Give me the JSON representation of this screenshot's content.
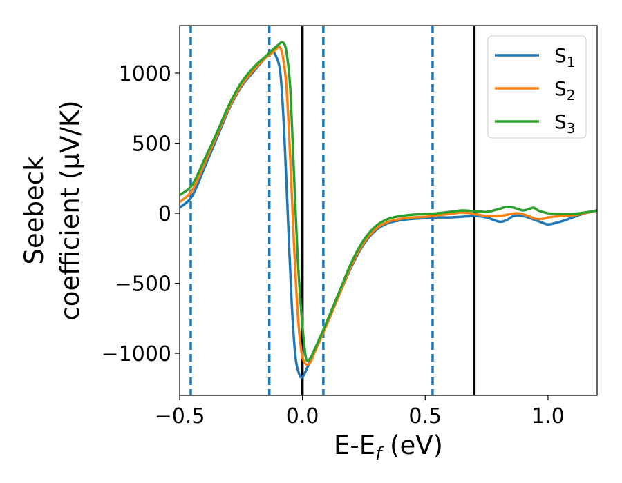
{
  "chart_data": {
    "type": "line",
    "title": "",
    "xlabel": "E-E",
    "xlabel_sub": "f",
    "xlabel_unit": " (eV)",
    "ylabel_line1": "Seebeck",
    "ylabel_line2": "coefficient  (μV/K)",
    "xlim": [
      -0.5,
      1.2
    ],
    "ylim": [
      -1300,
      1340
    ],
    "xticks": [
      -0.5,
      0.0,
      0.5,
      1.0
    ],
    "xtick_labels": [
      "−0.5",
      "0.0",
      "0.5",
      "1.0"
    ],
    "yticks": [
      -1000,
      -500,
      0,
      500,
      1000
    ],
    "ytick_labels": [
      "−1000",
      "−500",
      "0",
      "500",
      "1000"
    ],
    "grid": false,
    "legend_position": "top-right",
    "vertical_lines": [
      {
        "x": -0.455,
        "style": "dashed",
        "color": "#1f77b4"
      },
      {
        "x": -0.135,
        "style": "dashed",
        "color": "#1f77b4"
      },
      {
        "x": 0.0,
        "style": "solid",
        "color": "#000000"
      },
      {
        "x": 0.085,
        "style": "dashed",
        "color": "#1f77b4"
      },
      {
        "x": 0.53,
        "style": "dashed",
        "color": "#1f77b4"
      },
      {
        "x": 0.7,
        "style": "solid",
        "color": "#000000"
      }
    ],
    "series": [
      {
        "name": "S",
        "sub": "1",
        "color": "#1f77b4",
        "points": [
          [
            -0.5,
            40
          ],
          [
            -0.45,
            120
          ],
          [
            -0.4,
            320
          ],
          [
            -0.35,
            530
          ],
          [
            -0.3,
            740
          ],
          [
            -0.25,
            900
          ],
          [
            -0.2,
            1010
          ],
          [
            -0.15,
            1110
          ],
          [
            -0.125,
            1150
          ],
          [
            -0.11,
            1130
          ],
          [
            -0.09,
            1000
          ],
          [
            -0.075,
            600
          ],
          [
            -0.06,
            0
          ],
          [
            -0.045,
            -600
          ],
          [
            -0.03,
            -1000
          ],
          [
            -0.015,
            -1140
          ],
          [
            0.0,
            -1170
          ],
          [
            0.02,
            -1100
          ],
          [
            0.05,
            -980
          ],
          [
            0.1,
            -790
          ],
          [
            0.15,
            -580
          ],
          [
            0.2,
            -380
          ],
          [
            0.25,
            -220
          ],
          [
            0.3,
            -120
          ],
          [
            0.35,
            -70
          ],
          [
            0.4,
            -50
          ],
          [
            0.45,
            -40
          ],
          [
            0.5,
            -35
          ],
          [
            0.55,
            -30
          ],
          [
            0.6,
            -30
          ],
          [
            0.65,
            -25
          ],
          [
            0.7,
            -20
          ],
          [
            0.75,
            -30
          ],
          [
            0.8,
            -60
          ],
          [
            0.83,
            -50
          ],
          [
            0.86,
            -20
          ],
          [
            0.9,
            -20
          ],
          [
            0.95,
            -50
          ],
          [
            0.98,
            -70
          ],
          [
            1.0,
            -80
          ],
          [
            1.03,
            -70
          ],
          [
            1.07,
            -50
          ],
          [
            1.1,
            -30
          ],
          [
            1.15,
            0
          ],
          [
            1.2,
            20
          ]
        ]
      },
      {
        "name": "S",
        "sub": "2",
        "color": "#ff7f0e",
        "points": [
          [
            -0.5,
            80
          ],
          [
            -0.45,
            160
          ],
          [
            -0.4,
            350
          ],
          [
            -0.35,
            550
          ],
          [
            -0.3,
            750
          ],
          [
            -0.25,
            910
          ],
          [
            -0.2,
            1020
          ],
          [
            -0.15,
            1110
          ],
          [
            -0.12,
            1150
          ],
          [
            -0.1,
            1185
          ],
          [
            -0.09,
            1180
          ],
          [
            -0.08,
            1120
          ],
          [
            -0.065,
            900
          ],
          [
            -0.05,
            400
          ],
          [
            -0.035,
            -200
          ],
          [
            -0.02,
            -700
          ],
          [
            -0.005,
            -980
          ],
          [
            0.01,
            -1070
          ],
          [
            0.03,
            -1070
          ],
          [
            0.05,
            -990
          ],
          [
            0.1,
            -790
          ],
          [
            0.15,
            -580
          ],
          [
            0.2,
            -370
          ],
          [
            0.25,
            -210
          ],
          [
            0.3,
            -110
          ],
          [
            0.35,
            -60
          ],
          [
            0.4,
            -40
          ],
          [
            0.45,
            -30
          ],
          [
            0.5,
            -25
          ],
          [
            0.55,
            -15
          ],
          [
            0.6,
            -5
          ],
          [
            0.65,
            5
          ],
          [
            0.7,
            -5
          ],
          [
            0.75,
            -20
          ],
          [
            0.8,
            -20
          ],
          [
            0.85,
            -5
          ],
          [
            0.88,
            0
          ],
          [
            0.92,
            -20
          ],
          [
            0.95,
            -40
          ],
          [
            0.98,
            -40
          ],
          [
            1.0,
            -30
          ],
          [
            1.05,
            -20
          ],
          [
            1.1,
            -15
          ],
          [
            1.15,
            0
          ],
          [
            1.2,
            20
          ]
        ]
      },
      {
        "name": "S",
        "sub": "3",
        "color": "#2ca02c",
        "points": [
          [
            -0.5,
            130
          ],
          [
            -0.45,
            200
          ],
          [
            -0.4,
            380
          ],
          [
            -0.35,
            570
          ],
          [
            -0.3,
            770
          ],
          [
            -0.25,
            930
          ],
          [
            -0.2,
            1040
          ],
          [
            -0.15,
            1120
          ],
          [
            -0.12,
            1170
          ],
          [
            -0.1,
            1200
          ],
          [
            -0.085,
            1220
          ],
          [
            -0.075,
            1210
          ],
          [
            -0.065,
            1150
          ],
          [
            -0.05,
            900
          ],
          [
            -0.035,
            300
          ],
          [
            -0.02,
            -300
          ],
          [
            -0.005,
            -700
          ],
          [
            0.005,
            -900
          ],
          [
            0.015,
            -1040
          ],
          [
            0.03,
            -1040
          ],
          [
            0.05,
            -970
          ],
          [
            0.1,
            -770
          ],
          [
            0.15,
            -560
          ],
          [
            0.2,
            -350
          ],
          [
            0.25,
            -190
          ],
          [
            0.3,
            -90
          ],
          [
            0.35,
            -40
          ],
          [
            0.4,
            -20
          ],
          [
            0.45,
            -10
          ],
          [
            0.5,
            -5
          ],
          [
            0.55,
            0
          ],
          [
            0.6,
            10
          ],
          [
            0.65,
            20
          ],
          [
            0.7,
            15
          ],
          [
            0.75,
            10
          ],
          [
            0.8,
            30
          ],
          [
            0.83,
            45
          ],
          [
            0.86,
            40
          ],
          [
            0.9,
            20
          ],
          [
            0.94,
            40
          ],
          [
            0.96,
            20
          ],
          [
            1.0,
            0
          ],
          [
            1.05,
            -5
          ],
          [
            1.1,
            -5
          ],
          [
            1.15,
            5
          ],
          [
            1.2,
            20
          ]
        ]
      }
    ]
  }
}
